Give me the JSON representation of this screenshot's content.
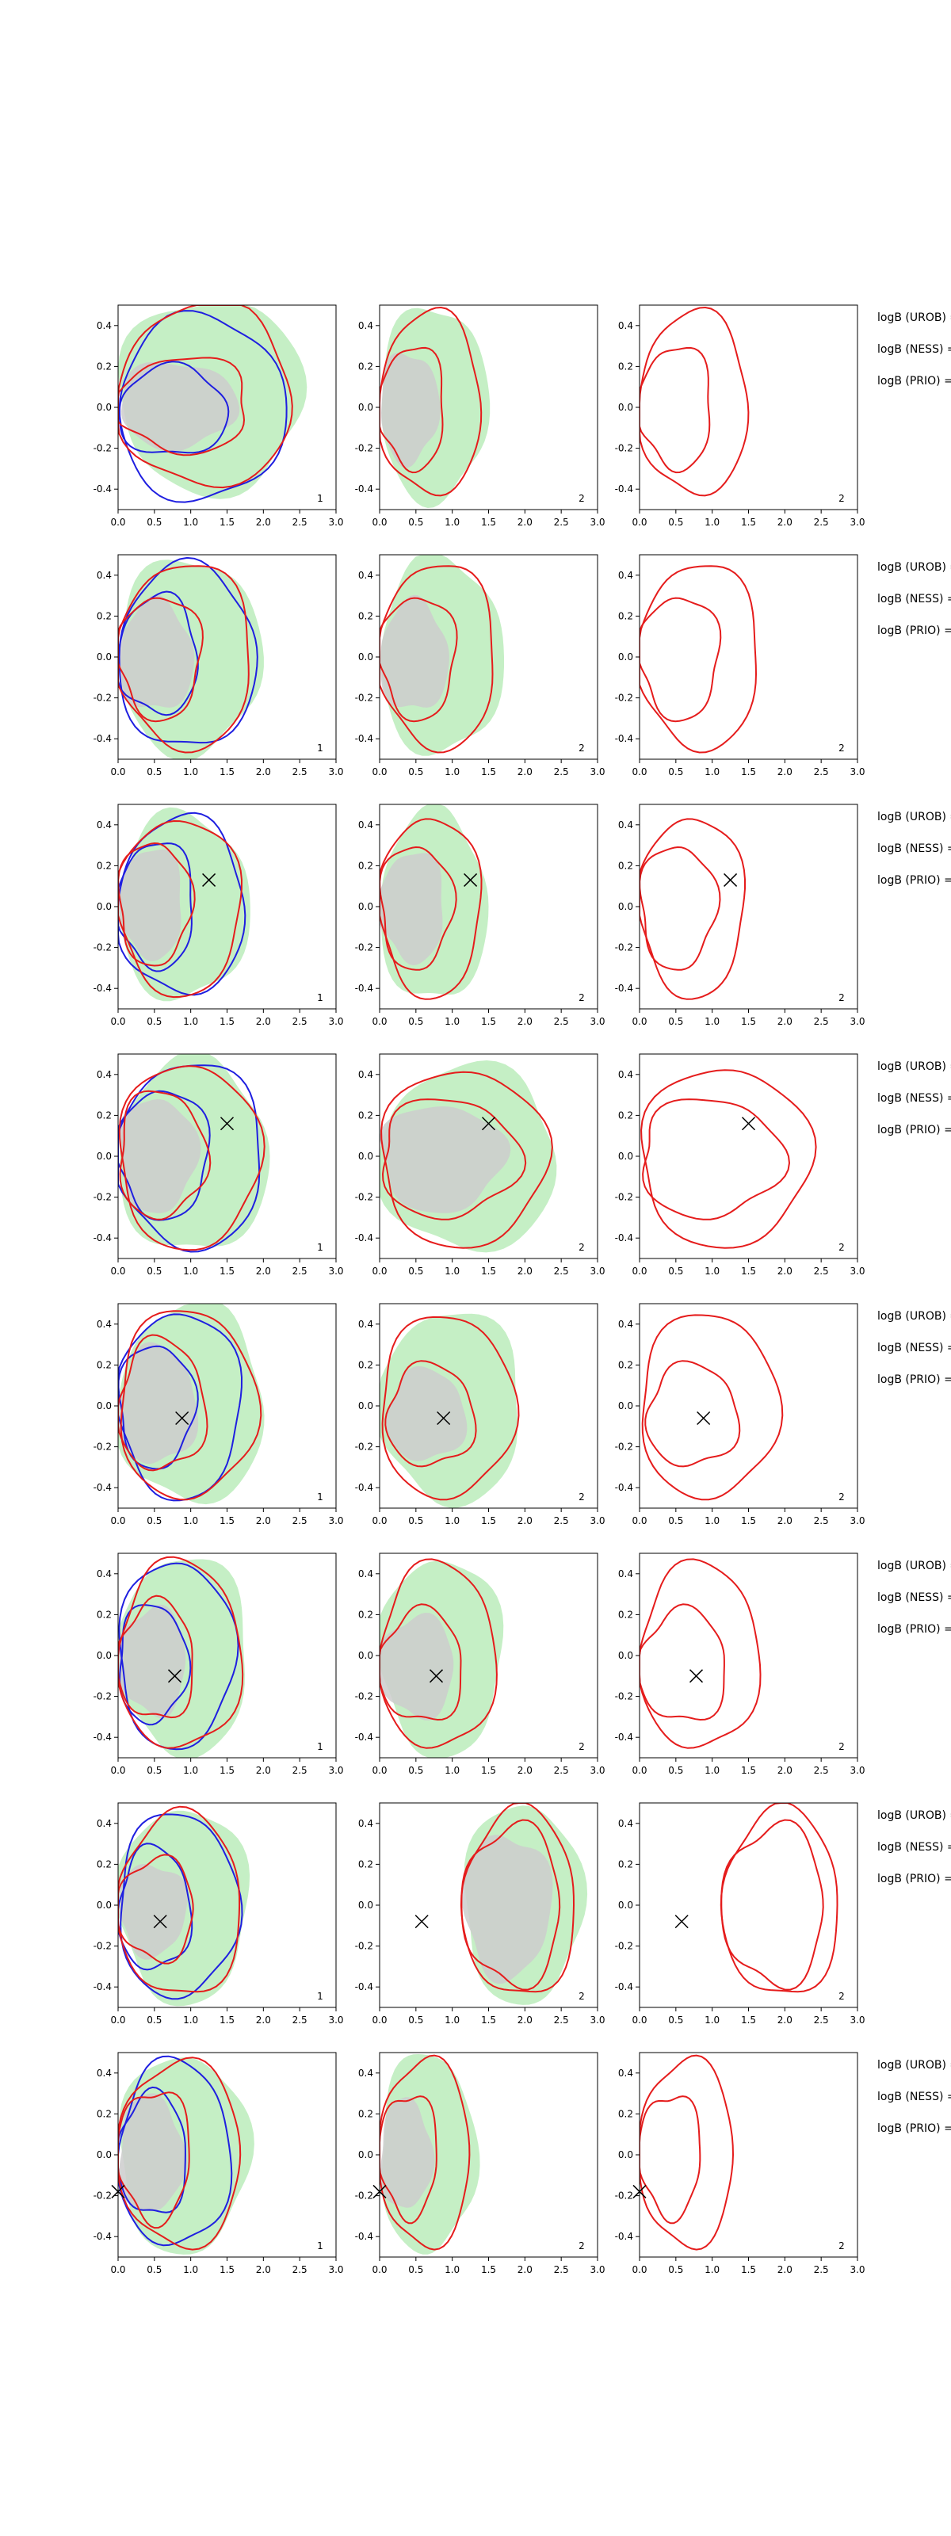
{
  "chart_data": {
    "type": "contour",
    "xlim": [
      0.0,
      3.0
    ],
    "ylim": [
      -0.5,
      0.5
    ],
    "xticks": [
      "0.0",
      "0.5",
      "1.0",
      "1.5",
      "2.0",
      "2.5",
      "3.0"
    ],
    "yticks": [
      "-0.4",
      "-0.2",
      "0.0",
      "0.2",
      "0.4"
    ],
    "colors": {
      "fill_outer": "#c5efc5",
      "fill_inner": "#cccccc",
      "red": "#e51c1c",
      "blue": "#1f1fe0",
      "marker": "#000000"
    },
    "side_labels": [
      "logB (UROB) =",
      "logB (NESS) =",
      "logB (PRIO) ="
    ],
    "rows": [
      {
        "marker": null,
        "panels": [
          {
            "label": "1",
            "fill": true,
            "blue": true,
            "red_outer": [
              0.0,
              0.05,
              2.4,
              0.46,
              0.44,
              0.5
            ],
            "red_inner": [
              0.0,
              0.0,
              1.8,
              0.25,
              0.22,
              0.45
            ],
            "blue_outer": [
              0.0,
              0.0,
              2.3,
              0.45,
              0.46,
              0.4
            ],
            "blue_inner": [
              0.0,
              -0.02,
              1.5,
              0.22,
              0.22,
              0.3
            ]
          },
          {
            "label": "2",
            "fill": true,
            "blue": false,
            "red_outer": [
              0.0,
              0.02,
              1.4,
              0.45,
              0.45,
              0.4
            ],
            "red_inner": [
              0.0,
              0.0,
              0.9,
              0.3,
              0.3,
              0.35
            ]
          },
          {
            "label": "2",
            "fill": false,
            "blue": false,
            "red_outer": [
              0.0,
              0.02,
              1.5,
              0.45,
              0.45,
              0.4
            ],
            "red_inner": [
              0.0,
              0.0,
              1.0,
              0.3,
              0.3,
              0.35
            ]
          }
        ]
      },
      {
        "marker": null,
        "panels": [
          {
            "label": "1",
            "fill": true,
            "blue": true,
            "red_outer": [
              0.0,
              0.0,
              1.85,
              0.46,
              0.45,
              0.35
            ],
            "red_inner": [
              0.0,
              0.0,
              1.15,
              0.3,
              0.3,
              0.3
            ],
            "blue_outer": [
              0.0,
              0.0,
              1.9,
              0.45,
              0.45,
              0.35
            ],
            "blue_inner": [
              0.0,
              0.0,
              1.1,
              0.3,
              0.28,
              0.3
            ]
          },
          {
            "label": "2",
            "fill": true,
            "blue": false,
            "red_outer": [
              0.0,
              0.0,
              1.6,
              0.46,
              0.45,
              0.35
            ],
            "red_inner": [
              0.0,
              0.0,
              1.05,
              0.3,
              0.3,
              0.3
            ]
          },
          {
            "label": "2",
            "fill": false,
            "blue": false,
            "red_outer": [
              0.0,
              0.0,
              1.65,
              0.46,
              0.45,
              0.35
            ],
            "red_inner": [
              0.0,
              0.0,
              1.1,
              0.3,
              0.3,
              0.3
            ]
          }
        ]
      },
      {
        "marker": [
          1.25,
          0.13
        ],
        "panels": [
          {
            "label": "1",
            "fill": true,
            "blue": true,
            "red_outer": [
              0.0,
              0.0,
              1.7,
              0.43,
              0.43,
              0.3
            ],
            "red_inner": [
              0.0,
              0.0,
              1.0,
              0.32,
              0.28,
              0.3
            ],
            "blue_outer": [
              0.0,
              0.0,
              1.75,
              0.44,
              0.43,
              0.3
            ],
            "blue_inner": [
              0.0,
              0.0,
              1.05,
              0.32,
              0.3,
              0.3
            ]
          },
          {
            "label": "2",
            "fill": true,
            "blue": false,
            "red_outer": [
              0.0,
              0.0,
              1.4,
              0.44,
              0.44,
              0.3
            ],
            "red_inner": [
              0.0,
              0.0,
              1.0,
              0.3,
              0.3,
              0.3
            ]
          },
          {
            "label": "2",
            "fill": false,
            "blue": false,
            "red_outer": [
              0.0,
              0.0,
              1.45,
              0.44,
              0.44,
              0.3
            ],
            "red_inner": [
              0.0,
              0.0,
              1.05,
              0.3,
              0.3,
              0.3
            ]
          }
        ]
      },
      {
        "marker": [
          1.5,
          0.16
        ],
        "panels": [
          {
            "label": "1",
            "fill": true,
            "blue": true,
            "red_outer": [
              0.0,
              0.0,
              1.95,
              0.45,
              0.45,
              0.35
            ],
            "red_inner": [
              0.0,
              0.0,
              1.2,
              0.32,
              0.3,
              0.3
            ],
            "blue_outer": [
              0.0,
              0.0,
              2.0,
              0.46,
              0.45,
              0.35
            ],
            "blue_inner": [
              0.0,
              0.0,
              1.25,
              0.33,
              0.3,
              0.3
            ]
          },
          {
            "label": "2",
            "fill": true,
            "blue": false,
            "red_outer": [
              0.0,
              0.0,
              2.3,
              0.42,
              0.44,
              0.35
            ],
            "red_inner": [
              0.0,
              0.0,
              1.9,
              0.28,
              0.3,
              0.3
            ]
          },
          {
            "label": "2",
            "fill": false,
            "blue": false,
            "red_outer": [
              0.0,
              0.0,
              2.35,
              0.43,
              0.44,
              0.35
            ],
            "red_inner": [
              0.0,
              0.0,
              1.95,
              0.28,
              0.3,
              0.3
            ]
          }
        ]
      },
      {
        "marker": [
          0.88,
          -0.06
        ],
        "panels": [
          {
            "label": "1",
            "fill": true,
            "blue": true,
            "red_outer": [
              0.0,
              0.0,
              1.9,
              0.47,
              0.45,
              0.35
            ],
            "red_inner": [
              0.0,
              0.0,
              1.2,
              0.32,
              0.32,
              0.3
            ],
            "blue_outer": [
              0.0,
              0.0,
              1.7,
              0.46,
              0.45,
              0.35
            ],
            "blue_inner": [
              0.0,
              0.0,
              1.05,
              0.3,
              0.3,
              0.3
            ]
          },
          {
            "label": "2",
            "fill": true,
            "blue": false,
            "red_outer": [
              0.0,
              0.0,
              1.85,
              0.44,
              0.45,
              0.3
            ],
            "red_inner": [
              0.1,
              -0.04,
              1.3,
              0.24,
              0.26,
              0.3
            ]
          },
          {
            "label": "2",
            "fill": false,
            "blue": false,
            "red_outer": [
              0.0,
              0.0,
              1.9,
              0.45,
              0.45,
              0.3
            ],
            "red_inner": [
              0.1,
              -0.04,
              1.35,
              0.24,
              0.26,
              0.3
            ]
          }
        ]
      },
      {
        "marker": [
          0.78,
          -0.1
        ],
        "panels": [
          {
            "label": "1",
            "fill": true,
            "blue": true,
            "red_outer": [
              0.0,
              0.0,
              1.7,
              0.46,
              0.46,
              0.3
            ],
            "red_inner": [
              0.0,
              -0.02,
              1.05,
              0.28,
              0.3,
              0.3
            ],
            "blue_outer": [
              0.0,
              0.0,
              1.6,
              0.46,
              0.45,
              0.3
            ],
            "blue_inner": [
              0.0,
              -0.03,
              0.95,
              0.28,
              0.3,
              0.3
            ]
          },
          {
            "label": "2",
            "fill": true,
            "blue": false,
            "red_outer": [
              0.0,
              0.0,
              1.6,
              0.45,
              0.46,
              0.3
            ],
            "red_inner": [
              0.0,
              -0.05,
              1.15,
              0.27,
              0.28,
              0.3
            ]
          },
          {
            "label": "2",
            "fill": false,
            "blue": false,
            "red_outer": [
              0.0,
              0.0,
              1.65,
              0.45,
              0.46,
              0.3
            ],
            "red_inner": [
              0.0,
              -0.05,
              1.2,
              0.27,
              0.28,
              0.3
            ]
          }
        ]
      },
      {
        "marker": [
          0.58,
          -0.08
        ],
        "panels": [
          {
            "label": "1",
            "fill": true,
            "blue": true,
            "red_outer": [
              0.0,
              0.0,
              1.7,
              0.45,
              0.45,
              0.3
            ],
            "red_inner": [
              0.0,
              -0.02,
              1.05,
              0.25,
              0.25,
              0.3
            ],
            "blue_outer": [
              0.0,
              0.0,
              1.65,
              0.45,
              0.45,
              0.3
            ],
            "blue_inner": [
              0.0,
              -0.02,
              1.0,
              0.3,
              0.3,
              0.3
            ]
          },
          {
            "label": "2",
            "fill": true,
            "blue": false,
            "red_outer": [
              1.15,
              0.0,
              2.7,
              0.47,
              0.45,
              0.3
            ],
            "red_inner": [
              1.15,
              -0.01,
              2.5,
              0.4,
              0.38,
              0.3
            ]
          },
          {
            "label": "2",
            "fill": false,
            "blue": false,
            "red_outer": [
              1.15,
              0.0,
              2.75,
              0.47,
              0.45,
              0.3
            ],
            "red_inner": [
              1.15,
              -0.01,
              2.55,
              0.4,
              0.38,
              0.3
            ]
          }
        ]
      },
      {
        "marker": [
          0.0,
          -0.18
        ],
        "panels": [
          {
            "label": "1",
            "fill": true,
            "blue": true,
            "red_outer": [
              0.0,
              0.0,
              1.7,
              0.46,
              0.45,
              0.3
            ],
            "red_inner": [
              0.0,
              0.0,
              1.0,
              0.32,
              0.32,
              0.3
            ],
            "blue_outer": [
              0.0,
              0.0,
              1.55,
              0.46,
              0.45,
              0.3
            ],
            "blue_inner": [
              0.0,
              0.0,
              0.95,
              0.3,
              0.3,
              0.3
            ]
          },
          {
            "label": "2",
            "fill": true,
            "blue": false,
            "red_outer": [
              0.0,
              0.0,
              1.25,
              0.47,
              0.45,
              0.3
            ],
            "red_inner": [
              0.0,
              0.0,
              0.8,
              0.3,
              0.3,
              0.3
            ]
          },
          {
            "label": "2",
            "fill": false,
            "blue": false,
            "red_outer": [
              0.0,
              0.0,
              1.3,
              0.47,
              0.45,
              0.3
            ],
            "red_inner": [
              0.0,
              0.0,
              0.85,
              0.3,
              0.3,
              0.3
            ]
          }
        ]
      }
    ]
  }
}
